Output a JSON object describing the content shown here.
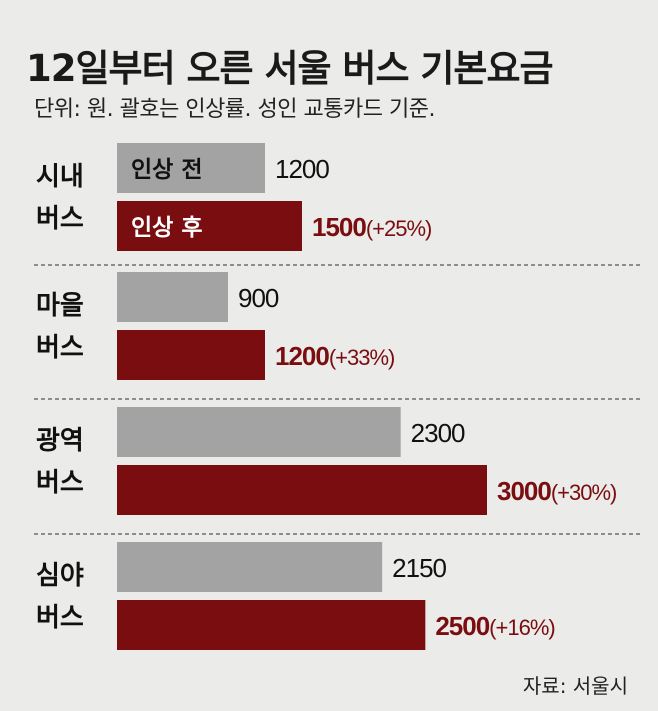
{
  "title": "12일부터 오른 서울 버스 기본요금",
  "subtitle": "단위: 원. 괄호는 인상률. 성인 교통카드 기준.",
  "source": "자료: 서울시",
  "colors": {
    "before": "#a3a3a3",
    "after": "#7a0d10",
    "after_text": "#7a0d10",
    "label": "#111111",
    "divider": "#555555"
  },
  "chart_data": {
    "type": "bar",
    "orientation": "horizontal",
    "title": "12일부터 오른 서울 버스 기본요금",
    "categories": [
      {
        "line1": "시내",
        "line2": "버스"
      },
      {
        "line1": "마을",
        "line2": "버스"
      },
      {
        "line1": "광역",
        "line2": "버스"
      },
      {
        "line1": "심야",
        "line2": "버스"
      }
    ],
    "series": [
      {
        "name": "인상 전",
        "values": [
          1200,
          900,
          2300,
          2150
        ],
        "labels": [
          "1200",
          "900",
          "2300",
          "2150"
        ]
      },
      {
        "name": "인상 후",
        "values": [
          1500,
          1200,
          3000,
          2500
        ],
        "labels": [
          "1500",
          "1200",
          "3000",
          "2500"
        ],
        "pct": [
          "(+25%)",
          "(+33%)",
          "(+30%)",
          "(+16%)"
        ]
      }
    ],
    "xlim": [
      0,
      3000
    ],
    "grid": false,
    "legend": "inline-first-group"
  }
}
